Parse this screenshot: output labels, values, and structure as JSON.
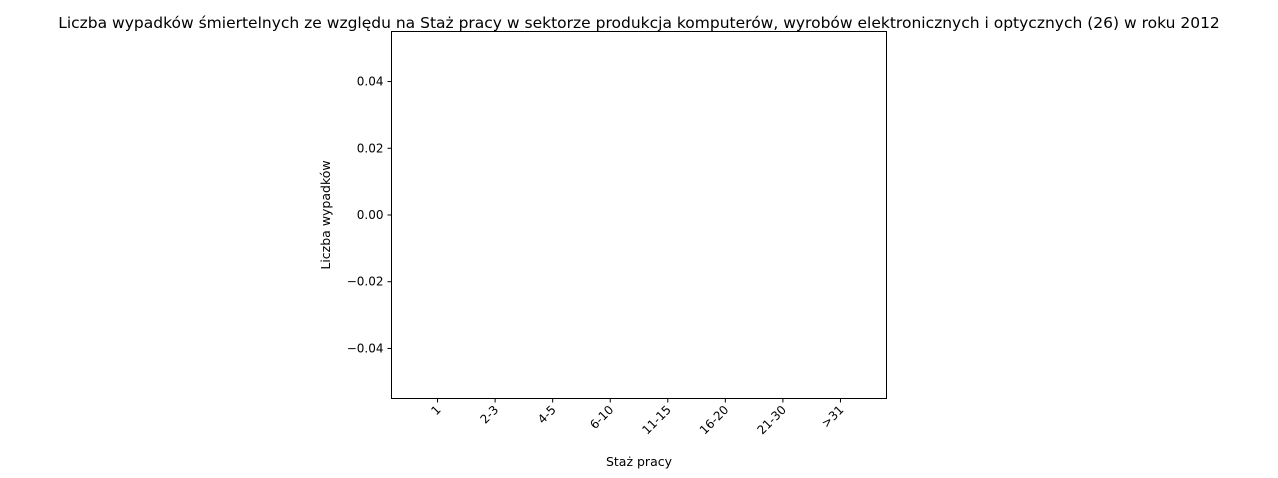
{
  "chart_data": {
    "type": "bar",
    "title": "Liczba wypadków śmiertelnych ze względu na Staż pracy w sektorze produkcja komputerów, wyrobów elektronicznych i optycznych (26)  w roku 2012",
    "xlabel": "Staż pracy",
    "ylabel": "Liczba wypadków",
    "categories": [
      "1",
      "2-3",
      "4-5",
      "6-10",
      "11-15",
      "16-20",
      "21-30",
      ">31"
    ],
    "values": [
      0,
      0,
      0,
      0,
      0,
      0,
      0,
      0
    ],
    "ylim": [
      -0.055,
      0.055
    ],
    "yticks": [
      0.04,
      0.02,
      0.0,
      -0.02,
      -0.04
    ],
    "ytick_labels": [
      "0.04",
      "0.02",
      "0.00",
      "−0.02",
      "−0.04"
    ],
    "grid": false,
    "bar_color": "#1f77b4"
  }
}
